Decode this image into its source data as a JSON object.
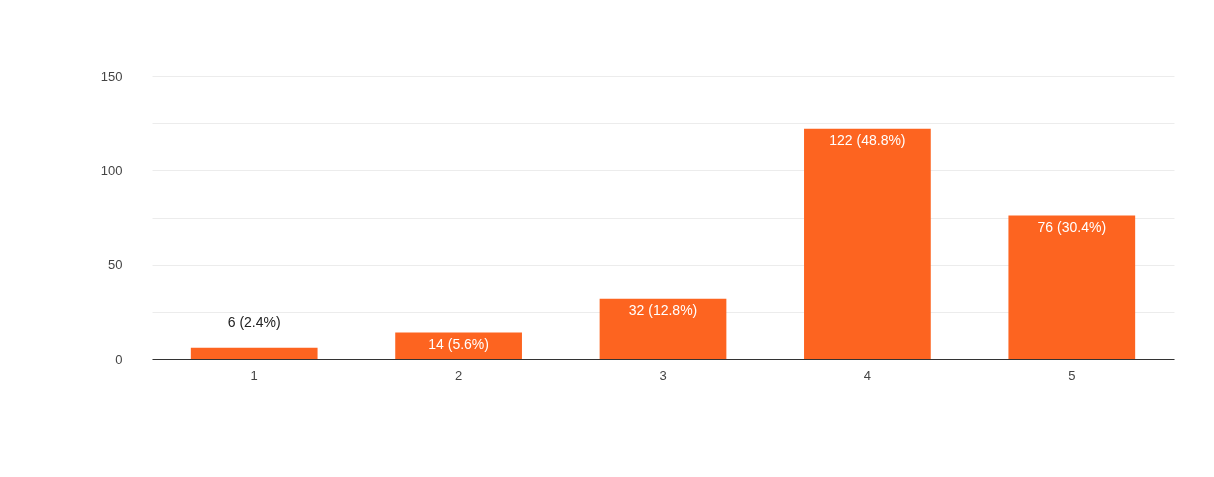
{
  "chart_data": {
    "type": "bar",
    "categories": [
      "1",
      "2",
      "3",
      "4",
      "5"
    ],
    "values": [
      6,
      14,
      32,
      122,
      76
    ],
    "value_labels": [
      "6 (2.4%)",
      "14 (5.6%)",
      "32 (12.8%)",
      "122 (48.8%)",
      "76 (30.4%)"
    ],
    "color": "#fd6420",
    "ylim": [
      0,
      150
    ],
    "yticks": [
      0,
      {
        "value": 25,
        "label": null
      },
      50,
      {
        "value": 75,
        "label": null
      },
      100,
      {
        "value": 125,
        "label": null
      },
      150
    ],
    "grid": "y"
  }
}
